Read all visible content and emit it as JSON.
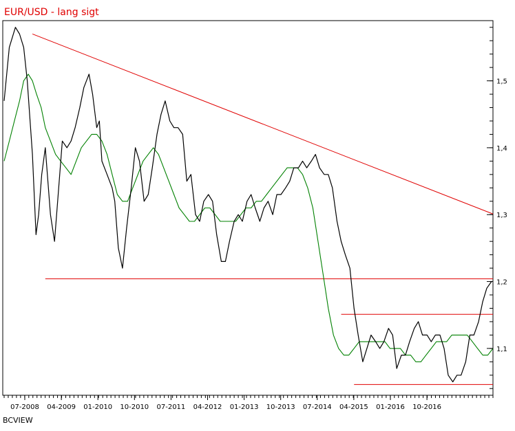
{
  "chart_data": {
    "type": "line",
    "title": "EUR/USD - lang sigt",
    "source_label": "BCVIEW",
    "ylim": [
      1.03,
      1.59
    ],
    "y_ticks": [
      {
        "value": 1.1,
        "label": "1,1"
      },
      {
        "value": 1.2,
        "label": "1,2"
      },
      {
        "value": 1.3,
        "label": "1,3"
      },
      {
        "value": 1.4,
        "label": "1,4"
      },
      {
        "value": 1.5,
        "label": "1,5"
      }
    ],
    "x_ticks": [
      "07-2008",
      "04-2009",
      "01-2010",
      "10-2010",
      "07-2011",
      "04-2012",
      "01-2013",
      "10-2013",
      "07-2014",
      "04-2015",
      "01-2016",
      "10-2016"
    ],
    "x_range": [
      2008.2,
      2017.7
    ],
    "colors": {
      "price": "#000000",
      "moving_average": "#008000",
      "trendlines": "#e00000",
      "title": "#e00000"
    },
    "series": [
      {
        "role": "price",
        "x": [
          2008.2,
          2008.3,
          2008.42,
          2008.5,
          2008.58,
          2008.65,
          2008.75,
          2008.82,
          2008.87,
          2008.93,
          2009.0,
          2009.1,
          2009.18,
          2009.25,
          2009.33,
          2009.42,
          2009.5,
          2009.58,
          2009.67,
          2009.75,
          2009.85,
          2009.92,
          2010.0,
          2010.05,
          2010.1,
          2010.2,
          2010.3,
          2010.35,
          2010.42,
          2010.5,
          2010.58,
          2010.67,
          2010.75,
          2010.83,
          2010.92,
          2011.0,
          2011.08,
          2011.17,
          2011.25,
          2011.33,
          2011.42,
          2011.5,
          2011.58,
          2011.67,
          2011.75,
          2011.83,
          2011.92,
          2012.0,
          2012.08,
          2012.17,
          2012.25,
          2012.33,
          2012.42,
          2012.5,
          2012.58,
          2012.67,
          2012.75,
          2012.83,
          2012.92,
          2013.0,
          2013.08,
          2013.17,
          2013.25,
          2013.33,
          2013.42,
          2013.5,
          2013.58,
          2013.67,
          2013.75,
          2013.83,
          2013.92,
          2014.0,
          2014.08,
          2014.17,
          2014.25,
          2014.33,
          2014.42,
          2014.5,
          2014.58,
          2014.67,
          2014.75,
          2014.83,
          2014.92,
          2015.0,
          2015.08,
          2015.17,
          2015.25,
          2015.33,
          2015.42,
          2015.5,
          2015.58,
          2015.67,
          2015.75,
          2015.83,
          2015.92,
          2016.0,
          2016.08,
          2016.17,
          2016.25,
          2016.33,
          2016.42,
          2016.5,
          2016.58,
          2016.67,
          2016.75,
          2016.83,
          2016.92,
          2017.0,
          2017.08,
          2017.17,
          2017.25,
          2017.33,
          2017.42,
          2017.5,
          2017.58,
          2017.67
        ],
        "values": [
          1.47,
          1.55,
          1.58,
          1.57,
          1.55,
          1.5,
          1.39,
          1.27,
          1.3,
          1.36,
          1.4,
          1.3,
          1.26,
          1.33,
          1.41,
          1.4,
          1.41,
          1.43,
          1.46,
          1.49,
          1.51,
          1.48,
          1.43,
          1.44,
          1.38,
          1.36,
          1.34,
          1.32,
          1.25,
          1.22,
          1.28,
          1.34,
          1.4,
          1.38,
          1.32,
          1.33,
          1.37,
          1.42,
          1.45,
          1.47,
          1.44,
          1.43,
          1.43,
          1.42,
          1.35,
          1.36,
          1.3,
          1.29,
          1.32,
          1.33,
          1.32,
          1.27,
          1.23,
          1.23,
          1.26,
          1.29,
          1.3,
          1.29,
          1.32,
          1.33,
          1.31,
          1.29,
          1.31,
          1.32,
          1.3,
          1.33,
          1.33,
          1.34,
          1.35,
          1.37,
          1.37,
          1.38,
          1.37,
          1.38,
          1.39,
          1.37,
          1.36,
          1.36,
          1.34,
          1.29,
          1.26,
          1.24,
          1.22,
          1.16,
          1.12,
          1.08,
          1.1,
          1.12,
          1.11,
          1.1,
          1.11,
          1.13,
          1.12,
          1.07,
          1.09,
          1.09,
          1.11,
          1.13,
          1.14,
          1.12,
          1.12,
          1.11,
          1.12,
          1.12,
          1.1,
          1.06,
          1.05,
          1.06,
          1.06,
          1.08,
          1.12,
          1.12,
          1.14,
          1.17,
          1.19,
          1.2
        ]
      },
      {
        "role": "moving_average",
        "x": [
          2008.2,
          2008.3,
          2008.4,
          2008.5,
          2008.58,
          2008.67,
          2008.75,
          2008.83,
          2008.92,
          2009.0,
          2009.1,
          2009.2,
          2009.3,
          2009.4,
          2009.5,
          2009.6,
          2009.7,
          2009.8,
          2009.9,
          2010.0,
          2010.1,
          2010.2,
          2010.3,
          2010.4,
          2010.5,
          2010.6,
          2010.7,
          2010.8,
          2010.9,
          2011.0,
          2011.1,
          2011.2,
          2011.3,
          2011.4,
          2011.5,
          2011.6,
          2011.7,
          2011.8,
          2011.9,
          2012.0,
          2012.1,
          2012.2,
          2012.3,
          2012.4,
          2012.5,
          2012.6,
          2012.7,
          2012.8,
          2012.9,
          2013.0,
          2013.1,
          2013.2,
          2013.3,
          2013.4,
          2013.5,
          2013.6,
          2013.7,
          2013.8,
          2013.9,
          2014.0,
          2014.1,
          2014.2,
          2014.3,
          2014.4,
          2014.5,
          2014.6,
          2014.7,
          2014.8,
          2014.9,
          2015.0,
          2015.1,
          2015.2,
          2015.3,
          2015.4,
          2015.5,
          2015.6,
          2015.7,
          2015.8,
          2015.9,
          2016.0,
          2016.1,
          2016.2,
          2016.3,
          2016.4,
          2016.5,
          2016.6,
          2016.7,
          2016.8,
          2016.9,
          2017.0,
          2017.1,
          2017.2,
          2017.3,
          2017.4,
          2017.5,
          2017.6,
          2017.7
        ],
        "values": [
          1.38,
          1.41,
          1.44,
          1.47,
          1.5,
          1.51,
          1.5,
          1.48,
          1.46,
          1.43,
          1.41,
          1.39,
          1.38,
          1.37,
          1.36,
          1.38,
          1.4,
          1.41,
          1.42,
          1.42,
          1.41,
          1.39,
          1.36,
          1.33,
          1.32,
          1.32,
          1.34,
          1.36,
          1.38,
          1.39,
          1.4,
          1.39,
          1.37,
          1.35,
          1.33,
          1.31,
          1.3,
          1.29,
          1.29,
          1.3,
          1.31,
          1.31,
          1.3,
          1.29,
          1.29,
          1.29,
          1.29,
          1.3,
          1.31,
          1.31,
          1.32,
          1.32,
          1.33,
          1.34,
          1.35,
          1.36,
          1.37,
          1.37,
          1.37,
          1.36,
          1.34,
          1.31,
          1.26,
          1.21,
          1.16,
          1.12,
          1.1,
          1.09,
          1.09,
          1.1,
          1.11,
          1.11,
          1.11,
          1.11,
          1.11,
          1.11,
          1.1,
          1.1,
          1.1,
          1.09,
          1.09,
          1.08,
          1.08,
          1.09,
          1.1,
          1.11,
          1.11,
          1.11,
          1.12,
          1.12,
          1.12,
          1.12,
          1.11,
          1.1,
          1.09,
          1.09,
          1.1
        ]
      }
    ],
    "trendlines": [
      {
        "role": "falling-resistance",
        "x": [
          2008.75,
          2017.7
        ],
        "y": [
          1.57,
          1.301
        ]
      },
      {
        "role": "support-1.20",
        "x": [
          2009.0,
          2017.7
        ],
        "y": [
          1.204,
          1.204
        ]
      },
      {
        "role": "resistance-1.15",
        "x": [
          2014.75,
          2017.7
        ],
        "y": [
          1.151,
          1.151
        ]
      },
      {
        "role": "support-1.04",
        "x": [
          2015.0,
          2017.7
        ],
        "y": [
          1.046,
          1.046
        ]
      }
    ]
  }
}
